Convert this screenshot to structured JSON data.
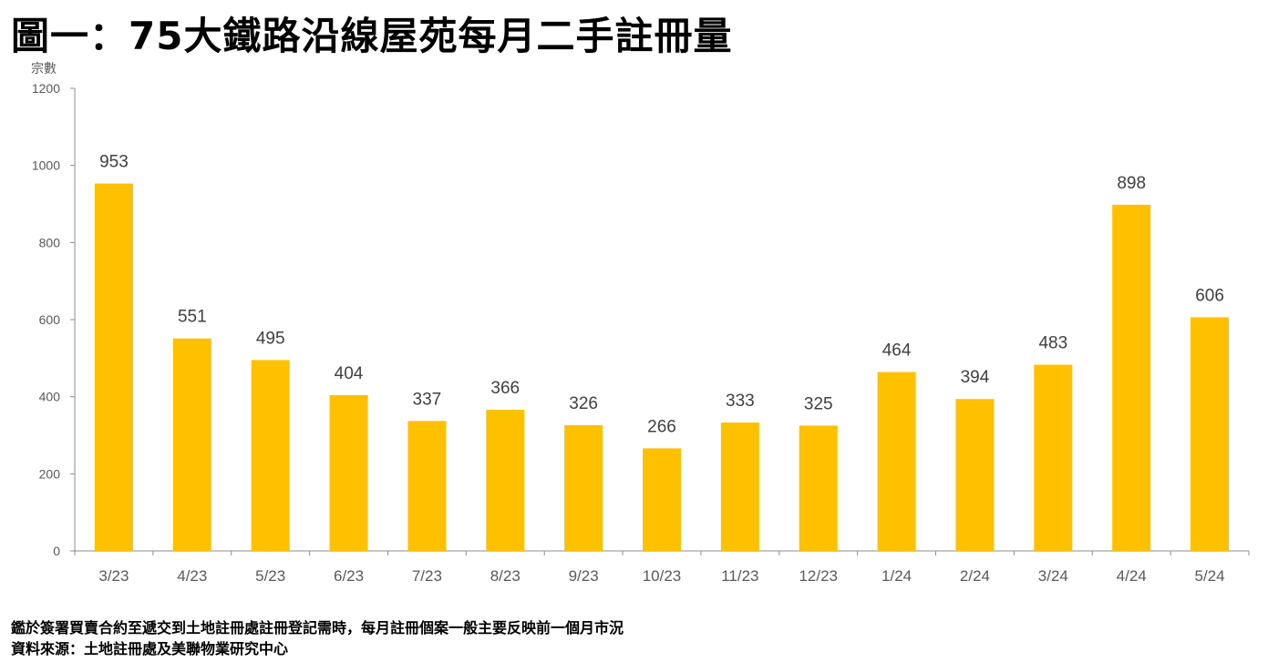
{
  "title": "圖一：75大鐵路沿線屋苑每月二手註冊量",
  "footnotes": [
    "鑑於簽署買賣合約至遞交到土地註冊處註冊登記需時，每月註冊個案一般主要反映前一個月市況",
    "資料來源：土地註冊處及美聯物業研究中心"
  ],
  "colors": {
    "bar": "#FFC000",
    "axis": "#8C8C8C"
  },
  "chart_data": {
    "type": "bar",
    "title": "圖一：75大鐵路沿線屋苑每月二手註冊量",
    "xlabel": "",
    "ylabel": "宗數",
    "ylim": [
      0,
      1200
    ],
    "yticks": [
      0,
      200,
      400,
      600,
      800,
      1000,
      1200
    ],
    "grid": false,
    "legend": "none",
    "data_labels": true,
    "categories": [
      "3/23",
      "4/23",
      "5/23",
      "6/23",
      "7/23",
      "8/23",
      "9/23",
      "10/23",
      "11/23",
      "12/23",
      "1/24",
      "2/24",
      "3/24",
      "4/24",
      "5/24"
    ],
    "values": [
      953,
      551,
      495,
      404,
      337,
      366,
      326,
      266,
      333,
      325,
      464,
      394,
      483,
      898,
      606
    ]
  }
}
